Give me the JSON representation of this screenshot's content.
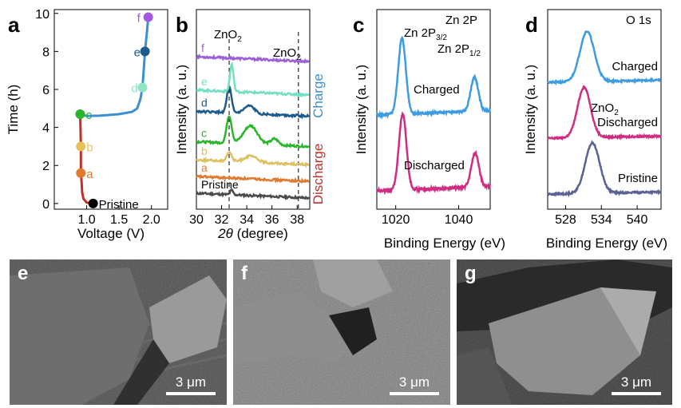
{
  "panels": {
    "a": {
      "letter": "a",
      "xlabel": "Voltage (V)",
      "ylabel": "Time (h)",
      "xlim": [
        0.5,
        2.25
      ],
      "ylim": [
        -0.3,
        10.2
      ],
      "xticks": [
        "1.0",
        "1.5",
        "2.0"
      ],
      "yticks": [
        "0",
        "2",
        "4",
        "6",
        "8",
        "10"
      ],
      "discharge_curve": [
        [
          1.1,
          0
        ],
        [
          1.0,
          0.05
        ],
        [
          0.95,
          0.25
        ],
        [
          0.93,
          0.6
        ],
        [
          0.92,
          1.2
        ],
        [
          0.91,
          1.6
        ],
        [
          0.91,
          3.0
        ],
        [
          0.9,
          4.7
        ]
      ],
      "charge_curve": [
        [
          0.9,
          4.7
        ],
        [
          1.0,
          4.6
        ],
        [
          1.2,
          4.62
        ],
        [
          1.5,
          4.7
        ],
        [
          1.7,
          4.82
        ],
        [
          1.78,
          5.0
        ],
        [
          1.83,
          5.5
        ],
        [
          1.86,
          6.1
        ],
        [
          1.88,
          7.0
        ],
        [
          1.9,
          8.0
        ],
        [
          1.93,
          9.0
        ],
        [
          1.95,
          9.8
        ]
      ],
      "points": [
        {
          "label": "Pristine",
          "x": 1.1,
          "y": 0,
          "color": "#000000"
        },
        {
          "label": "a",
          "x": 0.91,
          "y": 1.6,
          "color": "#e07a2e"
        },
        {
          "label": "b",
          "x": 0.91,
          "y": 3.0,
          "color": "#e6c35a"
        },
        {
          "label": "c",
          "x": 0.9,
          "y": 4.7,
          "color": "#2ab62a"
        },
        {
          "label": "d",
          "x": 1.86,
          "y": 6.1,
          "color": "#8ee6c2"
        },
        {
          "label": "e",
          "x": 1.9,
          "y": 8.0,
          "color": "#1e5b8c"
        },
        {
          "label": "f",
          "x": 1.95,
          "y": 9.8,
          "color": "#a259e0"
        }
      ],
      "discharge_color": "#c0302a",
      "charge_color": "#3d8fd0"
    },
    "b": {
      "letter": "b",
      "xlabel_symbol": "2θ",
      "xlabel_unit": " (degree)",
      "ylabel": "Intensity (a. u.)",
      "xlim": [
        30,
        39
      ],
      "xticks": [
        "30",
        "32",
        "34",
        "36",
        "38"
      ],
      "ref_lines": [
        32.6,
        38.1
      ],
      "ref_label_left": "ZnO",
      "ref_label_left_sub": "2",
      "ref_label_right": "ZnO",
      "ref_label_right_sub": "2",
      "charge_label": "Charge",
      "discharge_label": "Discharge",
      "charge_color": "#3d8fd0",
      "discharge_color": "#c0302a",
      "series": [
        {
          "name": "Pristine",
          "color": "#4a4a4a",
          "offset": 0.0,
          "peaks": [
            [
              32.8,
              0.15,
              0.12
            ]
          ]
        },
        {
          "name": "a",
          "color": "#e07a2e",
          "offset": 0.55,
          "peaks": []
        },
        {
          "name": "b",
          "color": "#dcc260",
          "offset": 1.1,
          "peaks": [
            [
              32.6,
              0.3,
              0.2
            ],
            [
              34.3,
              0.2,
              0.5
            ]
          ]
        },
        {
          "name": "c",
          "color": "#2ab62a",
          "offset": 1.7,
          "peaks": [
            [
              32.6,
              0.9,
              0.2
            ],
            [
              34.3,
              0.6,
              0.55
            ],
            [
              36.2,
              0.2,
              0.3
            ]
          ]
        },
        {
          "name": "d",
          "color": "#1e5b8c",
          "offset": 2.7,
          "peaks": [
            [
              32.6,
              0.85,
              0.18
            ],
            [
              34.2,
              0.25,
              0.4
            ]
          ]
        },
        {
          "name": "e",
          "color": "#70e0c0",
          "offset": 3.4,
          "peaks": [
            [
              32.8,
              0.9,
              0.14
            ]
          ]
        },
        {
          "name": "f",
          "color": "#9b5ed6",
          "offset": 4.5,
          "peaks": []
        }
      ]
    },
    "c": {
      "letter": "c",
      "xlabel": "Binding Energy (eV)",
      "ylabel": "Intensity (a. u.)",
      "xlim": [
        1014,
        1050
      ],
      "xticks": [
        "1020",
        "1040"
      ],
      "title": "Zn 2P",
      "peak1_label": "Zn 2P",
      "peak1_sub": "3/2",
      "peak2_label": "Zn 2P",
      "peak2_sub": "1/2",
      "series": [
        {
          "name": "Charged",
          "color": "#3d9be0",
          "offset": 1.0,
          "peaks": [
            [
              1022.0,
              1.0,
              1.2
            ],
            [
              1045.0,
              0.45,
              1.2
            ]
          ]
        },
        {
          "name": "Discharged",
          "color": "#d02d82",
          "offset": 0.0,
          "peaks": [
            [
              1022.2,
              1.0,
              1.2
            ],
            [
              1045.2,
              0.45,
              1.2
            ]
          ]
        }
      ]
    },
    "d": {
      "letter": "d",
      "xlabel": "Binding Energy (eV)",
      "ylabel": "Intensity (a. u.)",
      "xlim": [
        525,
        544
      ],
      "xticks": [
        "528",
        "534",
        "540"
      ],
      "title": "O 1s",
      "zno2_label": "ZnO",
      "zno2_sub": "2",
      "series": [
        {
          "name": "Charged",
          "color": "#3d9be0",
          "offset": 2.0,
          "peak": [
            531.6,
            0.9,
            1.2
          ]
        },
        {
          "name": "Discharged",
          "color": "#d02d82",
          "offset": 1.0,
          "peak": [
            531.1,
            0.9,
            1.1
          ]
        },
        {
          "name": "Pristine",
          "color": "#5a6294",
          "offset": 0.0,
          "peak": [
            532.5,
            0.9,
            1.2
          ]
        }
      ]
    }
  },
  "sem": [
    {
      "letter": "e",
      "scale": "3 μm"
    },
    {
      "letter": "f",
      "scale": "3 μm"
    },
    {
      "letter": "g",
      "scale": "3 μm"
    }
  ]
}
